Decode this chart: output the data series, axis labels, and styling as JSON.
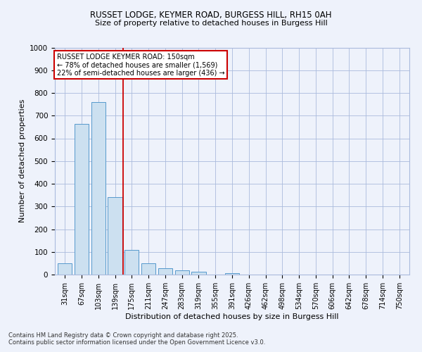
{
  "title1": "RUSSET LODGE, KEYMER ROAD, BURGESS HILL, RH15 0AH",
  "title2": "Size of property relative to detached houses in Burgess Hill",
  "xlabel": "Distribution of detached houses by size in Burgess Hill",
  "ylabel": "Number of detached properties",
  "categories": [
    "31sqm",
    "67sqm",
    "103sqm",
    "139sqm",
    "175sqm",
    "211sqm",
    "247sqm",
    "283sqm",
    "319sqm",
    "355sqm",
    "391sqm",
    "426sqm",
    "462sqm",
    "498sqm",
    "534sqm",
    "570sqm",
    "606sqm",
    "642sqm",
    "678sqm",
    "714sqm",
    "750sqm"
  ],
  "values": [
    50,
    665,
    760,
    340,
    108,
    50,
    27,
    18,
    12,
    0,
    7,
    0,
    0,
    0,
    0,
    0,
    0,
    0,
    0,
    0,
    0
  ],
  "bar_color": "#cce0f0",
  "bar_edge_color": "#5599cc",
  "vline_color": "#cc0000",
  "annotation_title": "RUSSET LODGE KEYMER ROAD: 150sqm",
  "annotation_line1": "← 78% of detached houses are smaller (1,569)",
  "annotation_line2": "22% of semi-detached houses are larger (436) →",
  "annotation_box_color": "#cc0000",
  "ylim": [
    0,
    1000
  ],
  "yticks": [
    0,
    100,
    200,
    300,
    400,
    500,
    600,
    700,
    800,
    900,
    1000
  ],
  "footnote1": "Contains HM Land Registry data © Crown copyright and database right 2025.",
  "footnote2": "Contains public sector information licensed under the Open Government Licence v3.0.",
  "bg_color": "#eef2fb",
  "plot_bg_color": "#eef2fb",
  "grid_color": "#aabbdd"
}
